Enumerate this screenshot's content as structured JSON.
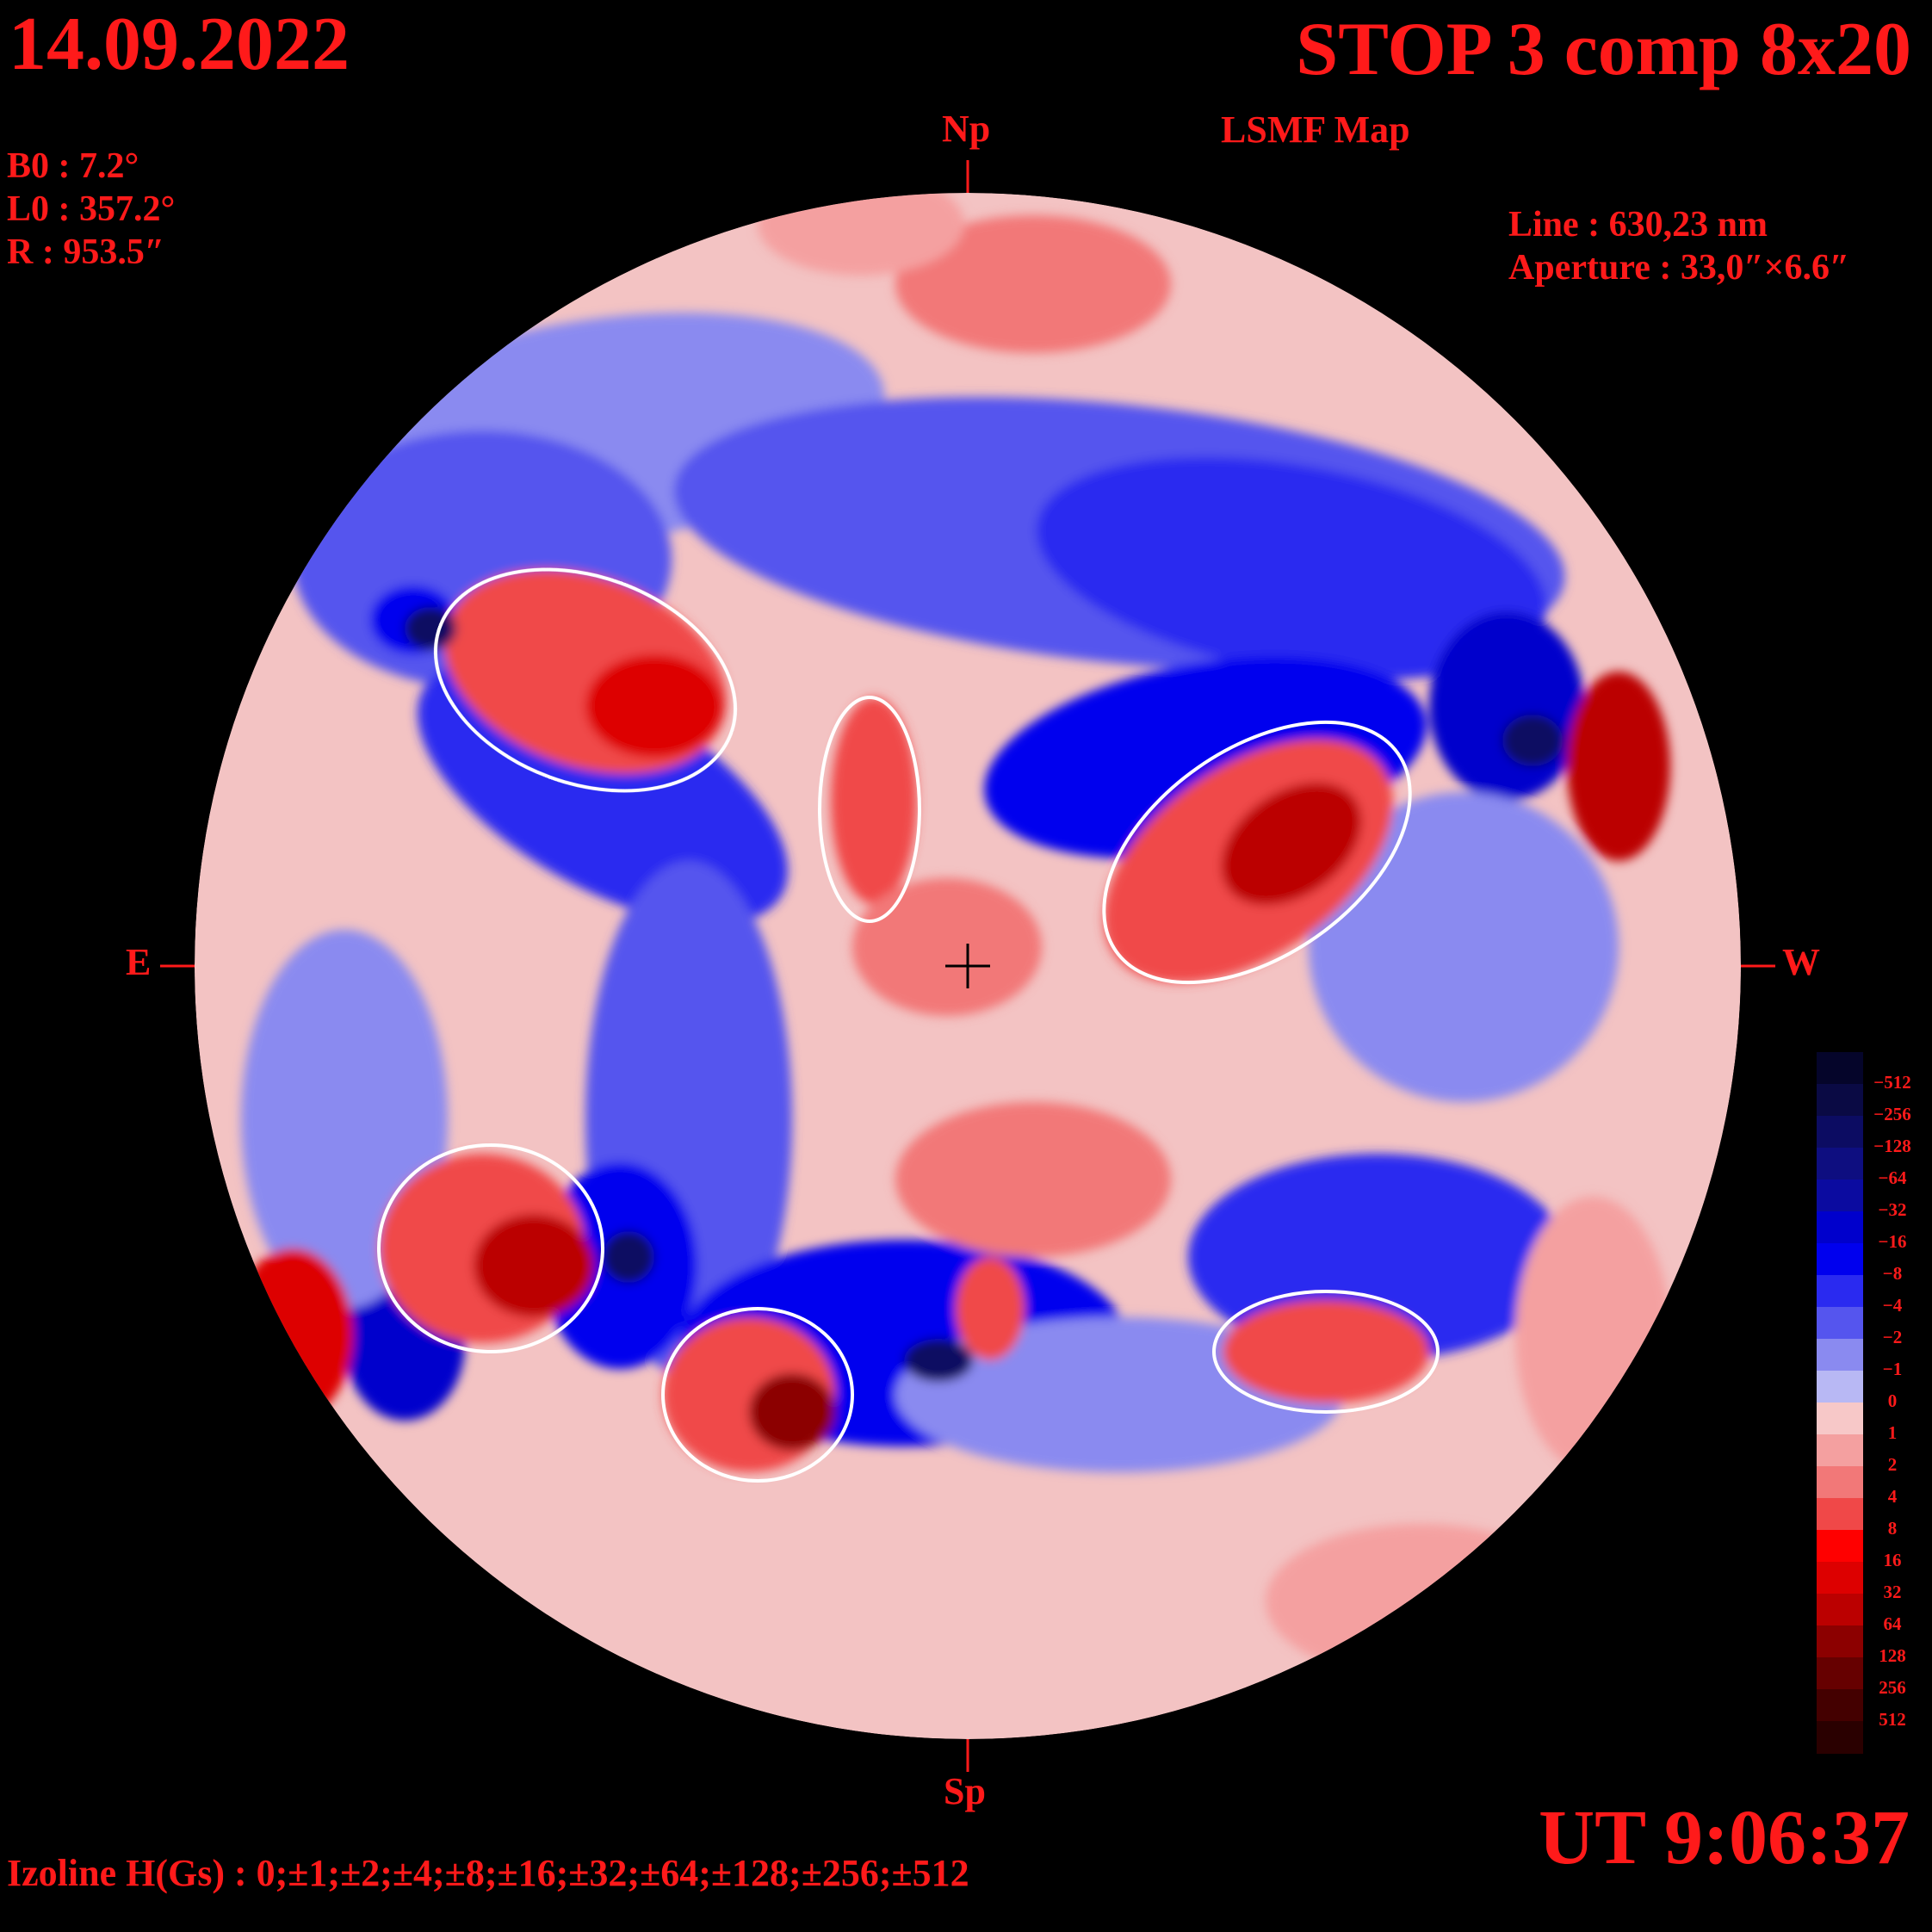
{
  "header": {
    "date": "14.09.2022",
    "title": "STOP 3 comp 8x20",
    "subtitle": "LSMF Map"
  },
  "params": {
    "b0": "B0 : 7.2°",
    "l0": "L0 : 357.2°",
    "r": "R  : 953.5″"
  },
  "instrument": {
    "line": "Line : 630,23 nm",
    "aperture": "Aperture : 33,0″×6.6″"
  },
  "directions": {
    "north": "Np",
    "south": "Sp",
    "east": "E",
    "west": "W"
  },
  "footer": {
    "izoline": "Izoline H(Gs) : 0;±1;±2;±4;±8;±16;±32;±64;±128;±256;±512",
    "time": "UT 9:06:37"
  },
  "colorbar": {
    "labels": [
      "−512",
      "−256",
      "−128",
      "−64",
      "−32",
      "−16",
      "−8",
      "−4",
      "−2",
      "−1",
      "0",
      "1",
      "2",
      "4",
      "8",
      "16",
      "32",
      "64",
      "128",
      "256",
      "512"
    ],
    "colors": [
      "#05052a",
      "#0a0a44",
      "#0c0c62",
      "#0e0e80",
      "#0b0ba0",
      "#0000cc",
      "#0000ee",
      "#2a2af0",
      "#5555ee",
      "#8a8af0",
      "#b8b8f4",
      "#f7c8c8",
      "#f4a0a0",
      "#f27878",
      "#f04848",
      "#ff0000",
      "#dd0000",
      "#bb0000",
      "#8c0000",
      "#660000",
      "#440000",
      "#2a0000"
    ]
  }
}
